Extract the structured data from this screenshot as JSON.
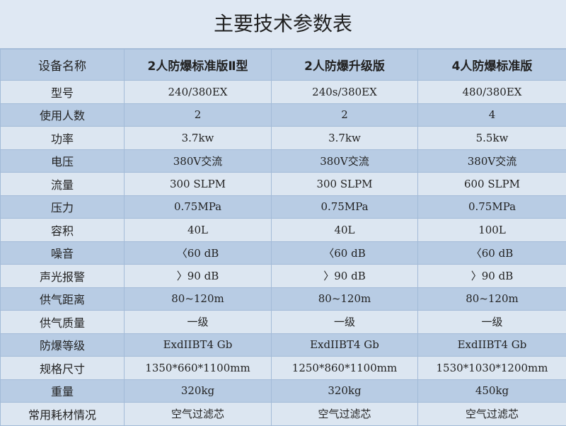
{
  "title": "主要技术参数表",
  "header": [
    "设备名称",
    "2人防爆标准版Ⅱ型",
    "2人防爆升级版",
    "4人防爆标准版"
  ],
  "rows": [
    [
      "型号",
      "240/380EX",
      "240s/380EX",
      "480/380EX"
    ],
    [
      "使用人数",
      "2",
      "2",
      "4"
    ],
    [
      "功率",
      "3.7kw",
      "3.7kw",
      "5.5kw"
    ],
    [
      "电压",
      "380V交流",
      "380V交流",
      "380V交流"
    ],
    [
      "流量",
      "300 SLPM",
      "300 SLPM",
      "600 SLPM"
    ],
    [
      "压力",
      "0.75MPa",
      "0.75MPa",
      "0.75MPa"
    ],
    [
      "容积",
      "40L",
      "40L",
      "100L"
    ],
    [
      "噪音",
      "〈60 dB",
      "〈60 dB",
      "〈60 dB"
    ],
    [
      "声光报警",
      "〉90 dB",
      "〉90 dB",
      "〉90 dB"
    ],
    [
      "供气距离",
      "80~120m",
      "80~120m",
      "80~120m"
    ],
    [
      "供气质量",
      "一级",
      "一级",
      "一级"
    ],
    [
      "防爆等级",
      "ExdIIBT4 Gb",
      "ExdIIBT4 Gb",
      "ExdIIBT4 Gb"
    ],
    [
      "规格尺寸",
      "1350*660*1100mm",
      "1250*860*1100mm",
      "1530*1030*1200mm"
    ],
    [
      "重量",
      "320kg",
      "320kg",
      "450kg"
    ],
    [
      "常用耗材情况",
      "空气过滤芯",
      "空气过滤芯",
      "空气过滤芯"
    ]
  ],
  "colors": {
    "header_bg": "#b8cce4",
    "light_row": "#dce6f1",
    "dark_row": "#b8cce4",
    "border": "#a3bbd8"
  }
}
